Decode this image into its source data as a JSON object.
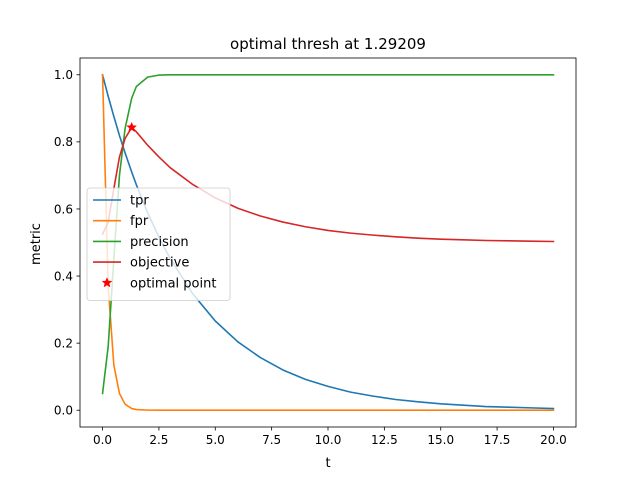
{
  "chart_data": {
    "type": "line",
    "title": "optimal thresh at 1.29209",
    "xlabel": "t",
    "ylabel": "metric",
    "xlim": [
      -1.0,
      21.0
    ],
    "ylim": [
      -0.05,
      1.05
    ],
    "xticks": [
      0.0,
      2.5,
      5.0,
      7.5,
      10.0,
      12.5,
      15.0,
      17.5,
      20.0
    ],
    "xtick_labels": [
      "0.0",
      "2.5",
      "5.0",
      "7.5",
      "10.0",
      "12.5",
      "15.0",
      "17.5",
      "20.0"
    ],
    "yticks": [
      0.0,
      0.2,
      0.4,
      0.6,
      0.8,
      1.0
    ],
    "ytick_labels": [
      "0.0",
      "0.2",
      "0.4",
      "0.6",
      "0.8",
      "1.0"
    ],
    "grid": false,
    "legend_position": "center-left",
    "x": [
      0,
      0.25,
      0.5,
      0.75,
      1,
      1.29209,
      1.5,
      2,
      2.5,
      3,
      4,
      5,
      6,
      7,
      8,
      9,
      10,
      11,
      12,
      13,
      14,
      15,
      16,
      17,
      18,
      19,
      20
    ],
    "series": [
      {
        "name": "tpr",
        "color": "#1f77b4",
        "values": [
          1.0,
          0.936,
          0.876,
          0.819,
          0.767,
          0.71,
          0.672,
          0.589,
          0.516,
          0.452,
          0.347,
          0.266,
          0.204,
          0.157,
          0.12,
          0.092,
          0.071,
          0.054,
          0.042,
          0.032,
          0.025,
          0.019,
          0.015,
          0.011,
          0.009,
          0.007,
          0.005
        ]
      },
      {
        "name": "fpr",
        "color": "#ff7f0e",
        "values": [
          1.0,
          0.37,
          0.135,
          0.05,
          0.018,
          0.005,
          0.002,
          0.0003,
          0.0,
          0.0,
          0.0,
          0.0,
          0.0,
          0.0,
          0.0,
          0.0,
          0.0,
          0.0,
          0.0,
          0.0,
          0.0,
          0.0,
          0.0,
          0.0,
          0.0,
          0.0,
          0.0
        ]
      },
      {
        "name": "precision",
        "color": "#2ca02c",
        "values": [
          0.05,
          0.19,
          0.45,
          0.7,
          0.84,
          0.93,
          0.965,
          0.993,
          0.999,
          1.0,
          1.0,
          1.0,
          1.0,
          1.0,
          1.0,
          1.0,
          1.0,
          1.0,
          1.0,
          1.0,
          1.0,
          1.0,
          1.0,
          1.0,
          1.0,
          1.0,
          1.0
        ]
      },
      {
        "name": "objective",
        "color": "#d62728",
        "values": [
          0.525,
          0.56,
          0.66,
          0.755,
          0.81,
          0.843,
          0.83,
          0.79,
          0.755,
          0.723,
          0.673,
          0.633,
          0.602,
          0.579,
          0.561,
          0.547,
          0.536,
          0.528,
          0.522,
          0.517,
          0.513,
          0.51,
          0.508,
          0.506,
          0.505,
          0.504,
          0.503
        ]
      }
    ],
    "markers": [
      {
        "name": "optimal point",
        "color": "#ff0000",
        "shape": "star",
        "x": 1.29209,
        "y": 0.843
      }
    ]
  }
}
